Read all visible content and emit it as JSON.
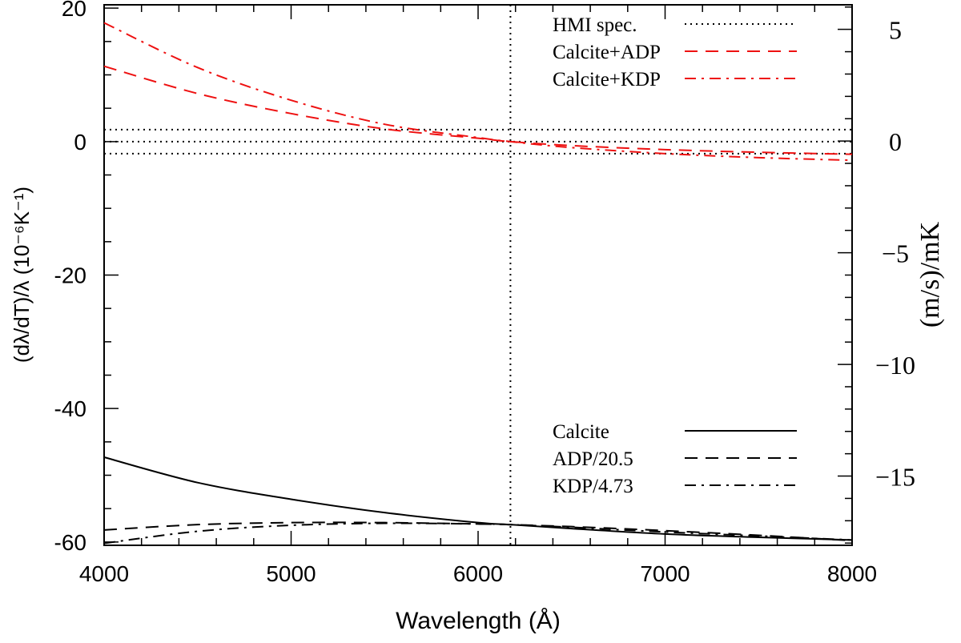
{
  "chart_data": {
    "type": "line",
    "xlabel": "Wavelength (Å)",
    "ylabel_left": "(dλ/dT)/λ (10⁻⁶K⁻¹)",
    "ylabel_right": "(m/s)/mK",
    "xlim": [
      4000,
      8000
    ],
    "ylim_left": [
      -60.5,
      20.5
    ],
    "ylim_right": [
      -18.1,
      6.1
    ],
    "x_ticks": [
      4000,
      5000,
      6000,
      7000,
      8000
    ],
    "x_tick_labels": [
      "4000",
      "5000",
      "6000",
      "7000",
      "8000"
    ],
    "y_left_ticks": [
      20,
      0,
      -20,
      -40,
      -60
    ],
    "y_left_tick_labels": [
      "20",
      "0",
      "-20",
      "-40",
      "-60"
    ],
    "y_right_ticks": [
      5,
      0,
      -5,
      -10,
      -15
    ],
    "y_right_tick_labels": [
      "5",
      "0",
      "−5",
      "−10",
      "−15"
    ],
    "reference_lines": {
      "hmi_wavelength": 6173,
      "spec_upper": 1.8,
      "spec_zero": 0,
      "spec_lower": -1.8
    },
    "x": [
      4000,
      4500,
      5000,
      5500,
      6000,
      6173,
      6500,
      7000,
      7500,
      8000
    ],
    "series": [
      {
        "name": "HMI spec.",
        "color": "#000000",
        "dash": "dotted",
        "axis": "left",
        "values": [
          1.8,
          1.8,
          1.8,
          1.8,
          1.8,
          1.8,
          1.8,
          1.8,
          1.8,
          1.8
        ]
      },
      {
        "name": "Calcite+ADP",
        "color": "#ee1111",
        "dash": "dashed",
        "axis": "left",
        "values": [
          11.3,
          7.2,
          4.2,
          1.9,
          0.5,
          0.0,
          -0.6,
          -1.2,
          -1.6,
          -1.9
        ]
      },
      {
        "name": "Calcite+KDP",
        "color": "#ee1111",
        "dash": "dashdot",
        "axis": "left",
        "values": [
          17.8,
          11.1,
          6.2,
          2.6,
          0.6,
          0.0,
          -0.9,
          -1.8,
          -2.4,
          -2.8
        ]
      },
      {
        "name": "Calcite",
        "color": "#000000",
        "dash": "solid",
        "axis": "left",
        "values": [
          -47.3,
          -51.1,
          -53.6,
          -55.6,
          -57.1,
          -57.4,
          -58.0,
          -58.8,
          -59.3,
          -59.7
        ]
      },
      {
        "name": "ADP/20.5",
        "color": "#000000",
        "dash": "dashed",
        "axis": "left",
        "values": [
          -58.2,
          -57.4,
          -57.1,
          -57.1,
          -57.3,
          -57.4,
          -57.7,
          -58.3,
          -59.0,
          -59.8
        ]
      },
      {
        "name": "KDP/4.73",
        "color": "#000000",
        "dash": "dashdot",
        "axis": "left",
        "values": [
          -60.2,
          -58.4,
          -57.5,
          -57.2,
          -57.3,
          -57.4,
          -57.8,
          -58.5,
          -59.1,
          -59.7
        ]
      }
    ],
    "legend_top": [
      "HMI spec.",
      "Calcite+ADP",
      "Calcite+KDP"
    ],
    "legend_bottom": [
      "Calcite",
      "ADP/20.5",
      "KDP/4.73"
    ],
    "legend_placement": [
      "top-right",
      "bottom-right"
    ],
    "grid": false
  }
}
